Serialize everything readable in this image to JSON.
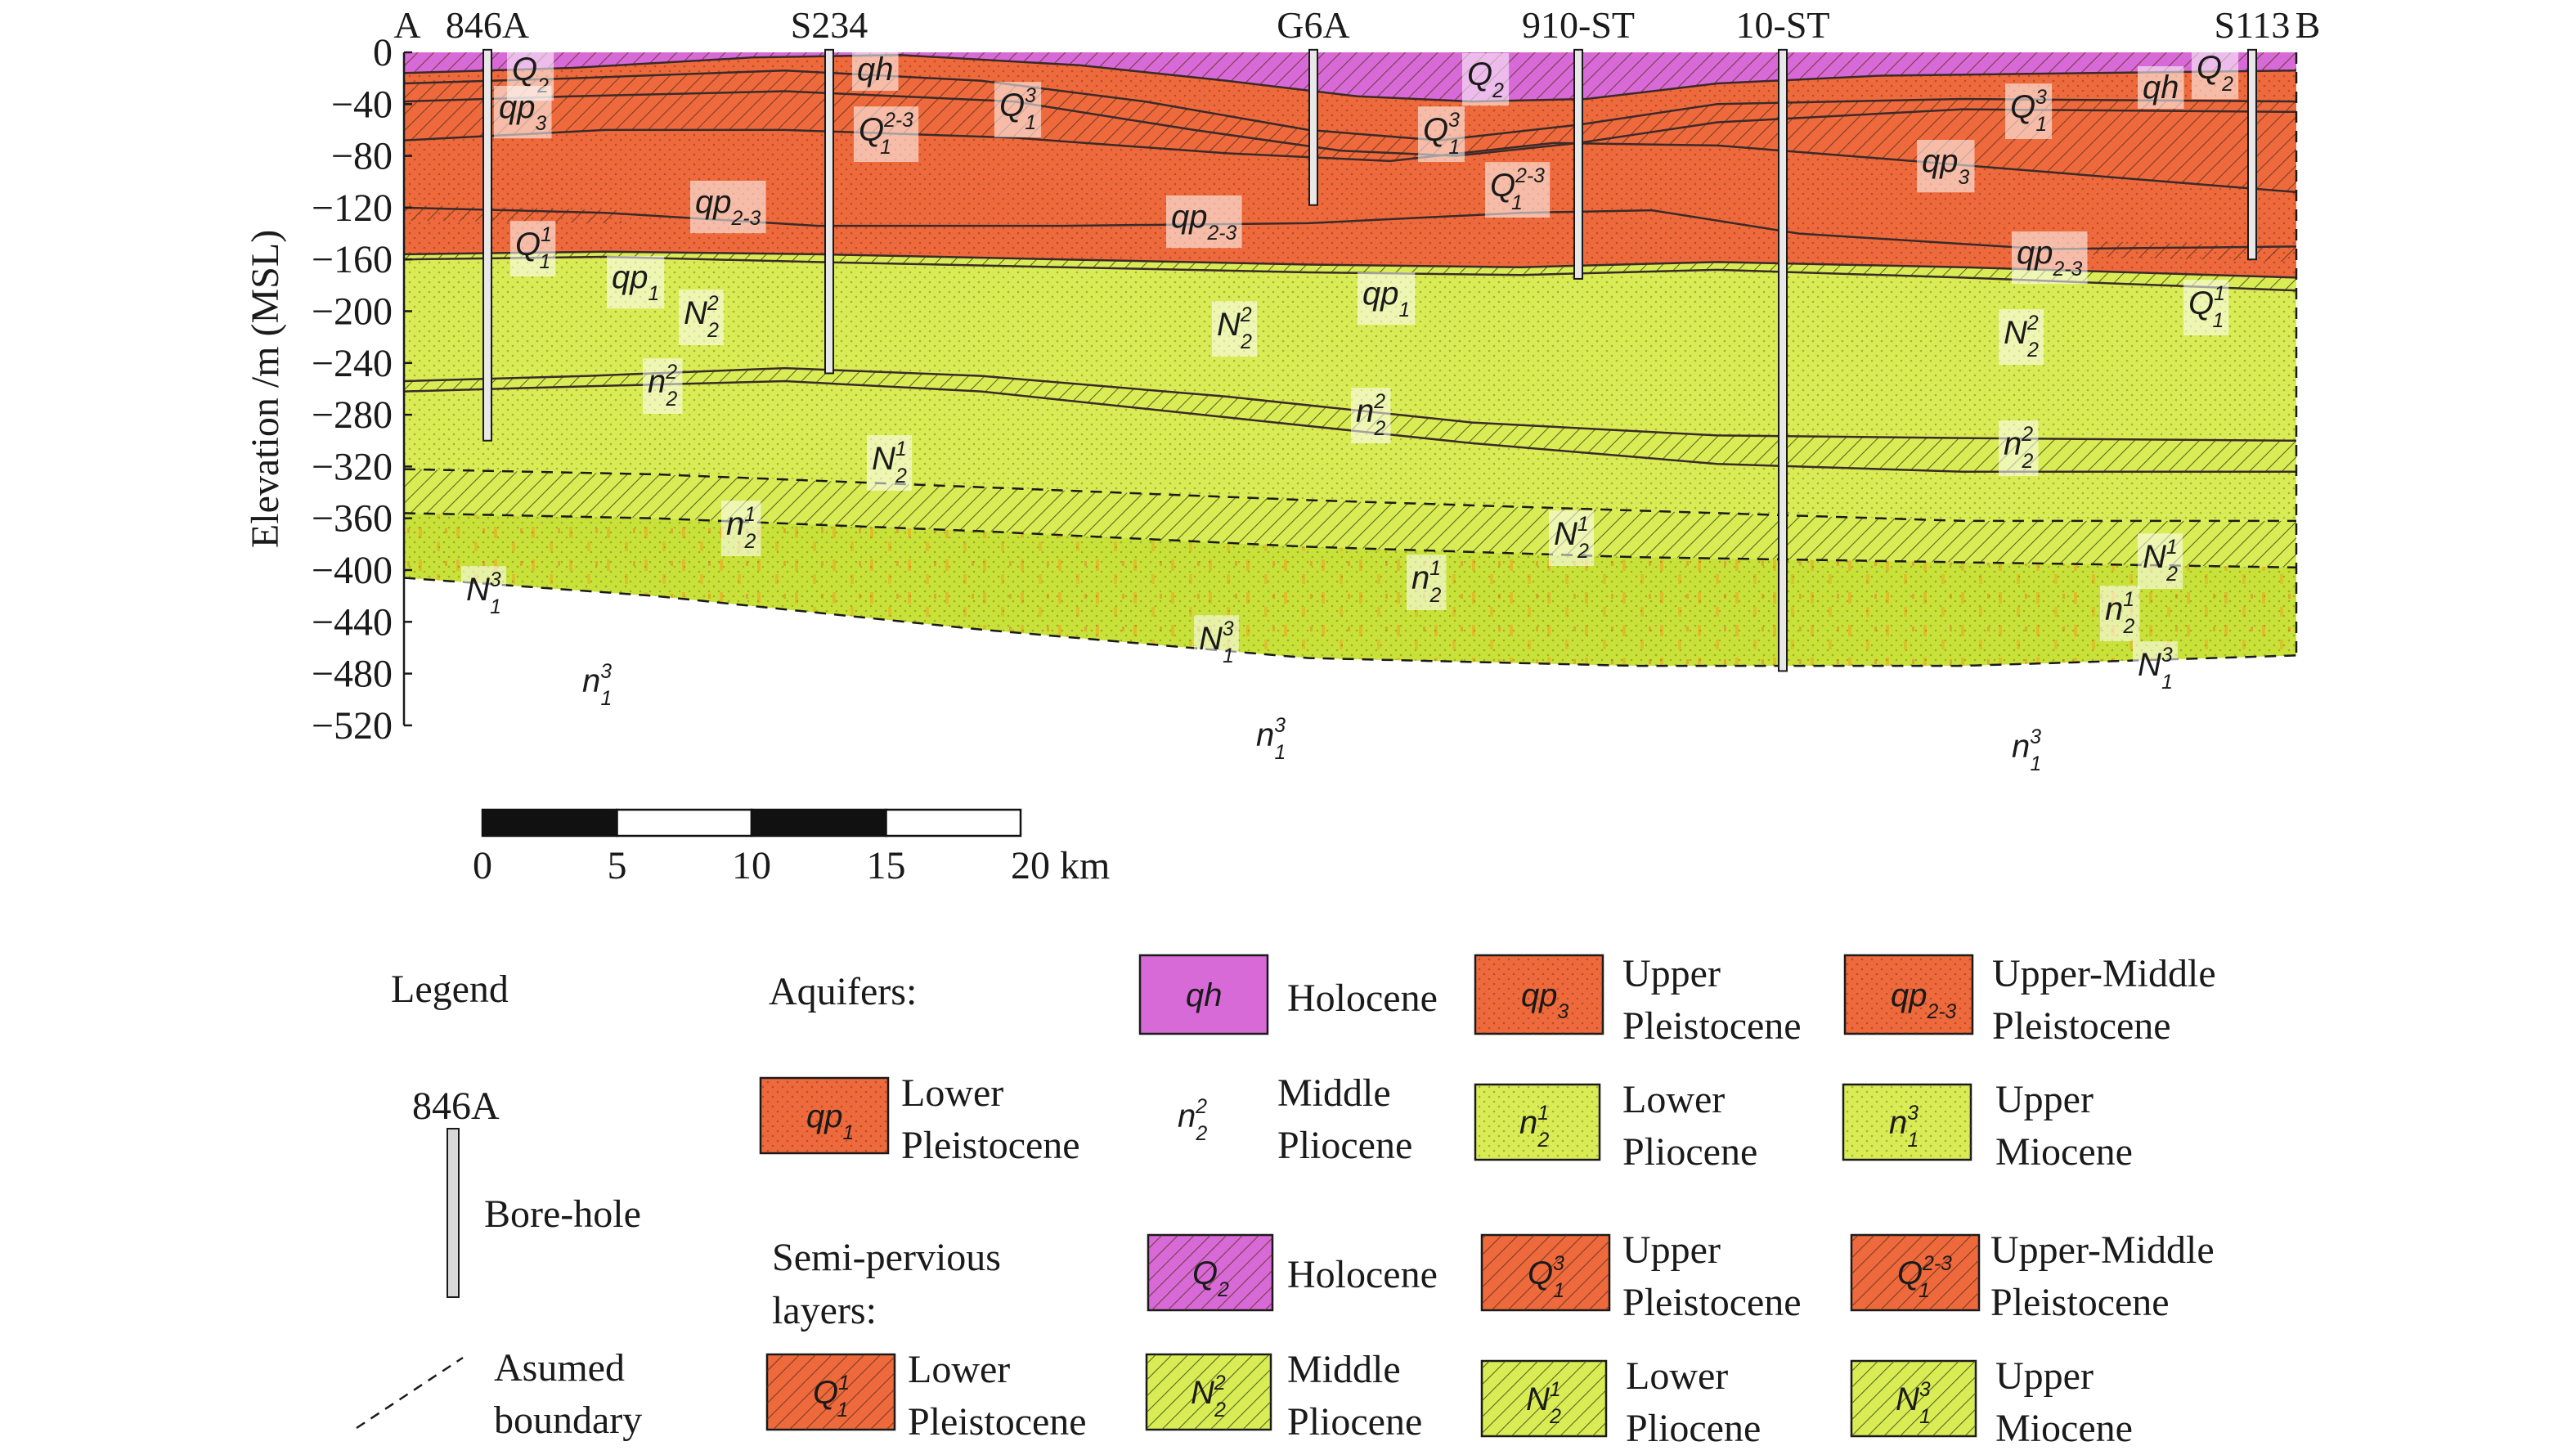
{
  "colors": {
    "holocene": "#d76ad7",
    "orange": "#ee6a3c",
    "yellow": "#d9ec55",
    "yellow_deep": "#c9e23a",
    "line": "#3a2a2a",
    "hatch": "#5a2a1a"
  },
  "axis": {
    "title": "Elevation /m (MSL)",
    "ticks": [
      "0",
      "−40",
      "−80",
      "−120",
      "−160",
      "−200",
      "−240",
      "−280",
      "−320",
      "−360",
      "−400",
      "−440",
      "−480",
      "−520"
    ]
  },
  "section_ends": {
    "start": "A",
    "end": "B"
  },
  "boreholes": [
    {
      "name": "846A",
      "depth": -300
    },
    {
      "name": "S234",
      "depth": -248
    },
    {
      "name": "G6A",
      "depth": -118
    },
    {
      "name": "910-ST",
      "depth": -175
    },
    {
      "name": "10-ST",
      "depth": -478
    },
    {
      "name": "S113",
      "depth": -160
    }
  ],
  "scale_bar": {
    "ticks": [
      "0",
      "5",
      "10",
      "15",
      "20 km"
    ]
  },
  "units": [
    {
      "id": "Q2",
      "base": "Q",
      "sub": "2",
      "sup": ""
    },
    {
      "id": "qh",
      "base": "qh",
      "sub": "",
      "sup": ""
    },
    {
      "id": "qp3",
      "base": "qp",
      "sub": "3",
      "sup": ""
    },
    {
      "id": "Q13",
      "base": "Q",
      "sub": "1",
      "sup": "3"
    },
    {
      "id": "Q123",
      "base": "Q",
      "sub": "1",
      "sup": "2-3"
    },
    {
      "id": "qp23",
      "base": "qp",
      "sub": "2-3",
      "sup": ""
    },
    {
      "id": "Q11",
      "base": "Q",
      "sub": "1",
      "sup": "1"
    },
    {
      "id": "qp1",
      "base": "qp",
      "sub": "1",
      "sup": ""
    },
    {
      "id": "N22",
      "base": "N",
      "sub": "2",
      "sup": "2"
    },
    {
      "id": "n22",
      "base": "n",
      "sub": "2",
      "sup": "2"
    },
    {
      "id": "N21",
      "base": "N",
      "sub": "2",
      "sup": "1"
    },
    {
      "id": "n21",
      "base": "n",
      "sub": "2",
      "sup": "1"
    },
    {
      "id": "N13",
      "base": "N",
      "sub": "1",
      "sup": "3"
    },
    {
      "id": "n13",
      "base": "n",
      "sub": "1",
      "sup": "3"
    }
  ],
  "legend": {
    "title": "Legend",
    "aquifers_label": "Aquifers:",
    "semi_label": "Semi-pervious layers:",
    "borehole_sample": "846A",
    "borehole_label": "Bore-hole",
    "boundary_label": "Asumed boundary",
    "aquifers": [
      {
        "unit": "qh",
        "text": "Holocene",
        "fill": "holocene",
        "hatch": false
      },
      {
        "unit": "qp3",
        "text": "Upper Pleistocene",
        "fill": "orange",
        "hatch": false
      },
      {
        "unit": "qp23",
        "text": "Upper-Middle Pleistocene",
        "fill": "orange",
        "hatch": false
      },
      {
        "unit": "qp1",
        "text": "Lower Pleistocene",
        "fill": "orange",
        "hatch": false
      },
      {
        "unit": "n22",
        "text": "Middle Pliocene",
        "fill": "none",
        "hatch": false
      },
      {
        "unit": "n21",
        "text": "Lower Pliocene",
        "fill": "yellow",
        "hatch": false
      },
      {
        "unit": "n13",
        "text": "Upper Miocene",
        "fill": "yellow",
        "hatch": false
      }
    ],
    "semi": [
      {
        "unit": "Q2",
        "text": "Holocene",
        "fill": "holocene",
        "hatch": true
      },
      {
        "unit": "Q13",
        "text": "Upper Pleistocene",
        "fill": "orange",
        "hatch": true
      },
      {
        "unit": "Q123",
        "text": "Upper-Middle Pleistocene",
        "fill": "orange",
        "hatch": true
      },
      {
        "unit": "Q11",
        "text": "Lower Pleistocene",
        "fill": "orange",
        "hatch": true
      },
      {
        "unit": "N22",
        "text": "Middle Pliocene",
        "fill": "yellow",
        "hatch": true
      },
      {
        "unit": "N21",
        "text": "Lower Pliocene",
        "fill": "yellow",
        "hatch": true
      },
      {
        "unit": "N13",
        "text": "Upper Miocene",
        "fill": "yellow",
        "hatch": true
      }
    ]
  }
}
